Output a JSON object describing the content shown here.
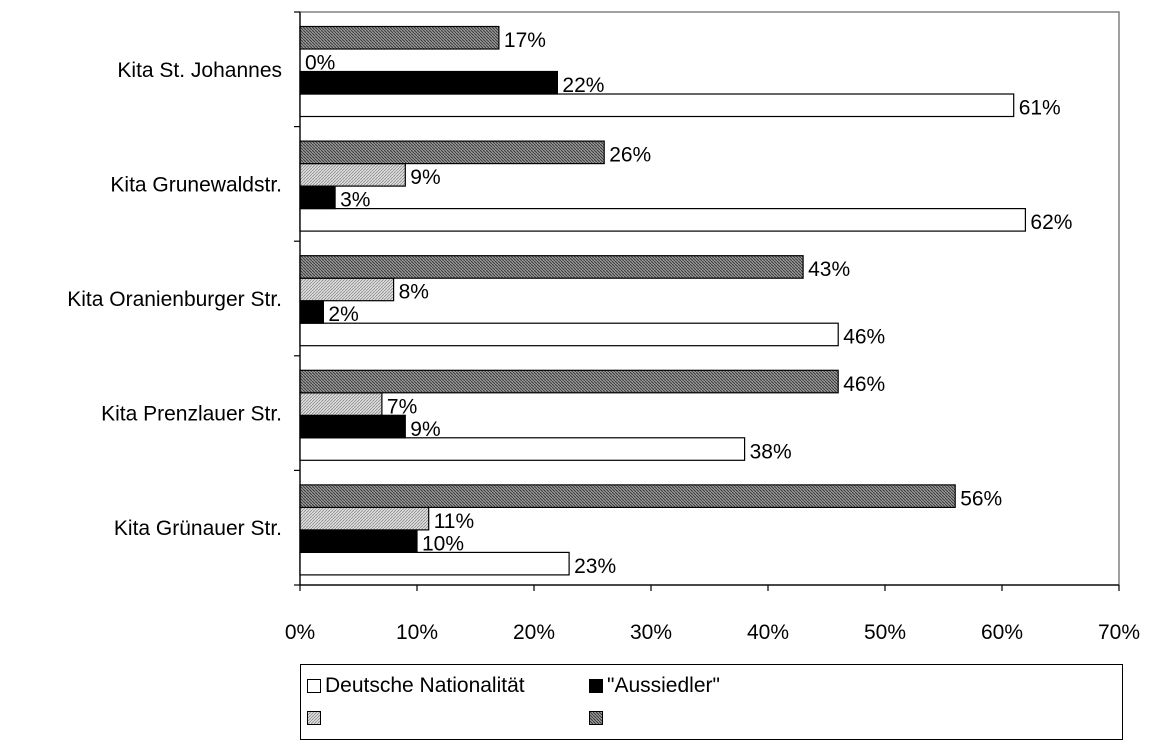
{
  "chart_data": {
    "type": "bar",
    "orientation": "horizontal",
    "categories": [
      "Kita St. Johannes",
      "Kita Grunewaldstr.",
      "Kita Oranienburger Str.",
      "Kita Prenzlauer Str.",
      "Kita Grünauer Str."
    ],
    "series": [
      {
        "name": "Deutsche Nationalität",
        "values": [
          61,
          62,
          46,
          38,
          23
        ],
        "labels": [
          "61%",
          "62%",
          "46%",
          "38%",
          "23%"
        ],
        "fill": "white"
      },
      {
        "name": "\"Aussiedler\"",
        "values": [
          22,
          3,
          2,
          9,
          10
        ],
        "labels": [
          "22%",
          "3%",
          "2%",
          "9%",
          "10%"
        ],
        "fill": "black"
      },
      {
        "name": "",
        "values": [
          0,
          9,
          8,
          7,
          11
        ],
        "labels": [
          "0%",
          "9%",
          "8%",
          "7%",
          "11%"
        ],
        "fill": "light-gray-hatch"
      },
      {
        "name": "",
        "values": [
          17,
          26,
          43,
          46,
          56
        ],
        "labels": [
          "17%",
          "26%",
          "43%",
          "46%",
          "56%"
        ],
        "fill": "dark-gray-hatch"
      }
    ],
    "xlim": [
      0,
      70
    ],
    "xticks": [
      "0%",
      "10%",
      "20%",
      "30%",
      "40%",
      "50%",
      "60%",
      "70%"
    ],
    "grid": false,
    "legend_position": "bottom",
    "title": "",
    "xlabel": "",
    "ylabel": ""
  },
  "legend": {
    "items": [
      {
        "label": "Deutsche Nationalität",
        "swatch": "white"
      },
      {
        "label": "\"Aussiedler\"",
        "swatch": "black"
      },
      {
        "label": "",
        "swatch": "light-gray-hatch"
      },
      {
        "label": "",
        "swatch": "dark-gray-hatch"
      }
    ]
  }
}
